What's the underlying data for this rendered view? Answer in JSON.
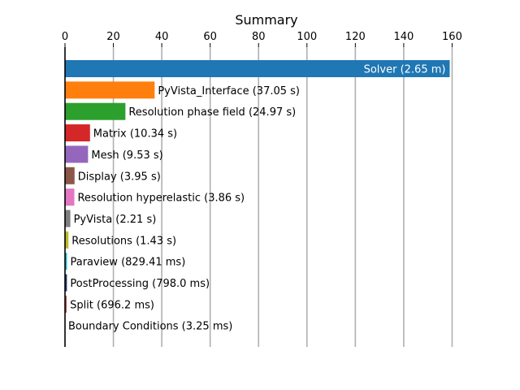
{
  "chart_data": {
    "type": "bar",
    "orientation": "horizontal",
    "title": "Summary",
    "xlabel": "",
    "ylabel": "",
    "xlim": [
      0,
      162
    ],
    "x_ticks": [
      0,
      20,
      40,
      60,
      80,
      100,
      120,
      140,
      160
    ],
    "x_axis_position": "top",
    "grid": "vertical",
    "legend": "none",
    "bars": [
      {
        "label": "Solver (2.65 m)",
        "value": 159,
        "color": "#1f77b4",
        "label_inside": true
      },
      {
        "label": "PyVista_Interface (37.05 s)",
        "value": 37.05,
        "color": "#ff7f0e"
      },
      {
        "label": "Resolution phase field (24.97 s)",
        "value": 24.97,
        "color": "#2ca02c"
      },
      {
        "label": "Matrix (10.34 s)",
        "value": 10.34,
        "color": "#d62728"
      },
      {
        "label": "Mesh (9.53 s)",
        "value": 9.53,
        "color": "#9467bd"
      },
      {
        "label": "Display (3.95 s)",
        "value": 3.95,
        "color": "#8c564b"
      },
      {
        "label": "Resolution hyperelastic (3.86 s)",
        "value": 3.86,
        "color": "#e377c2"
      },
      {
        "label": "PyVista (2.21 s)",
        "value": 2.21,
        "color": "#7f7f7f"
      },
      {
        "label": "Resolutions (1.43 s)",
        "value": 1.43,
        "color": "#bcbd22"
      },
      {
        "label": "Paraview (829.41 ms)",
        "value": 0.82941,
        "color": "#17becf"
      },
      {
        "label": "PostProcessing (798.0 ms)",
        "value": 0.798,
        "color": "#1f3b73"
      },
      {
        "label": "Split (696.2 ms)",
        "value": 0.6962,
        "color": "#c0504d"
      },
      {
        "label": "Boundary Conditions (3.25 ms)",
        "value": 0.00325,
        "color": "#2ca02c"
      }
    ]
  }
}
